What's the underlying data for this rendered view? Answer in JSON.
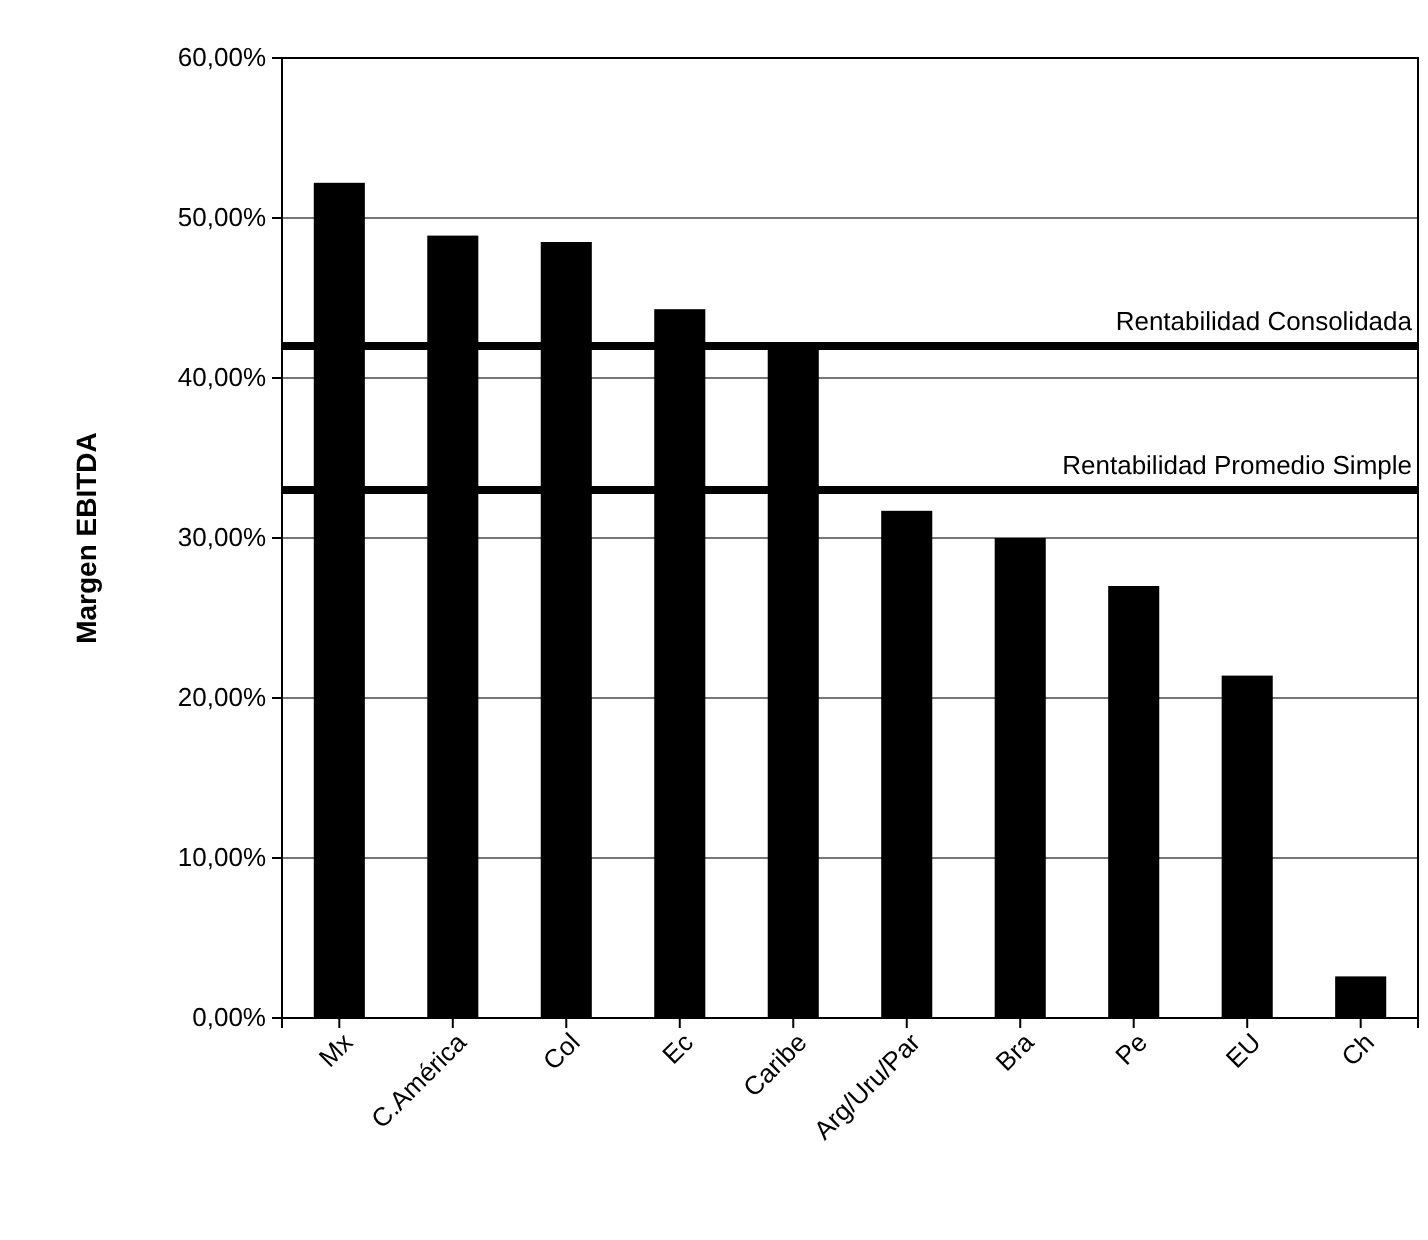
{
  "chart_data": {
    "type": "bar",
    "ylabel": "Margen EBITDA",
    "categories": [
      "Mx",
      "C.América",
      "Col",
      "Ec",
      "Caribe",
      "Arg/Uru/Par",
      "Bra",
      "Pe",
      "EU",
      "Ch"
    ],
    "values": [
      52.2,
      48.9,
      48.5,
      44.3,
      41.8,
      31.7,
      30.0,
      27.0,
      21.4,
      2.6
    ],
    "color": "#000000",
    "ylim": [
      0,
      60
    ],
    "yticks": [
      {
        "value": 0,
        "label": "0,00%"
      },
      {
        "value": 10,
        "label": "10,00%"
      },
      {
        "value": 20,
        "label": "20,00%"
      },
      {
        "value": 30,
        "label": "30,00%"
      },
      {
        "value": 40,
        "label": "40,00%"
      },
      {
        "value": 50,
        "label": "50,00%"
      },
      {
        "value": 60,
        "label": "60,00%"
      }
    ],
    "grid": "y",
    "ref_lines": [
      {
        "axis": "y",
        "value": 42,
        "label": "Rentabilidad Consolidada",
        "color": "#000000"
      },
      {
        "axis": "y",
        "value": 33,
        "label": "Rentabilidad Promedio Simple",
        "color": "#000000"
      }
    ]
  }
}
